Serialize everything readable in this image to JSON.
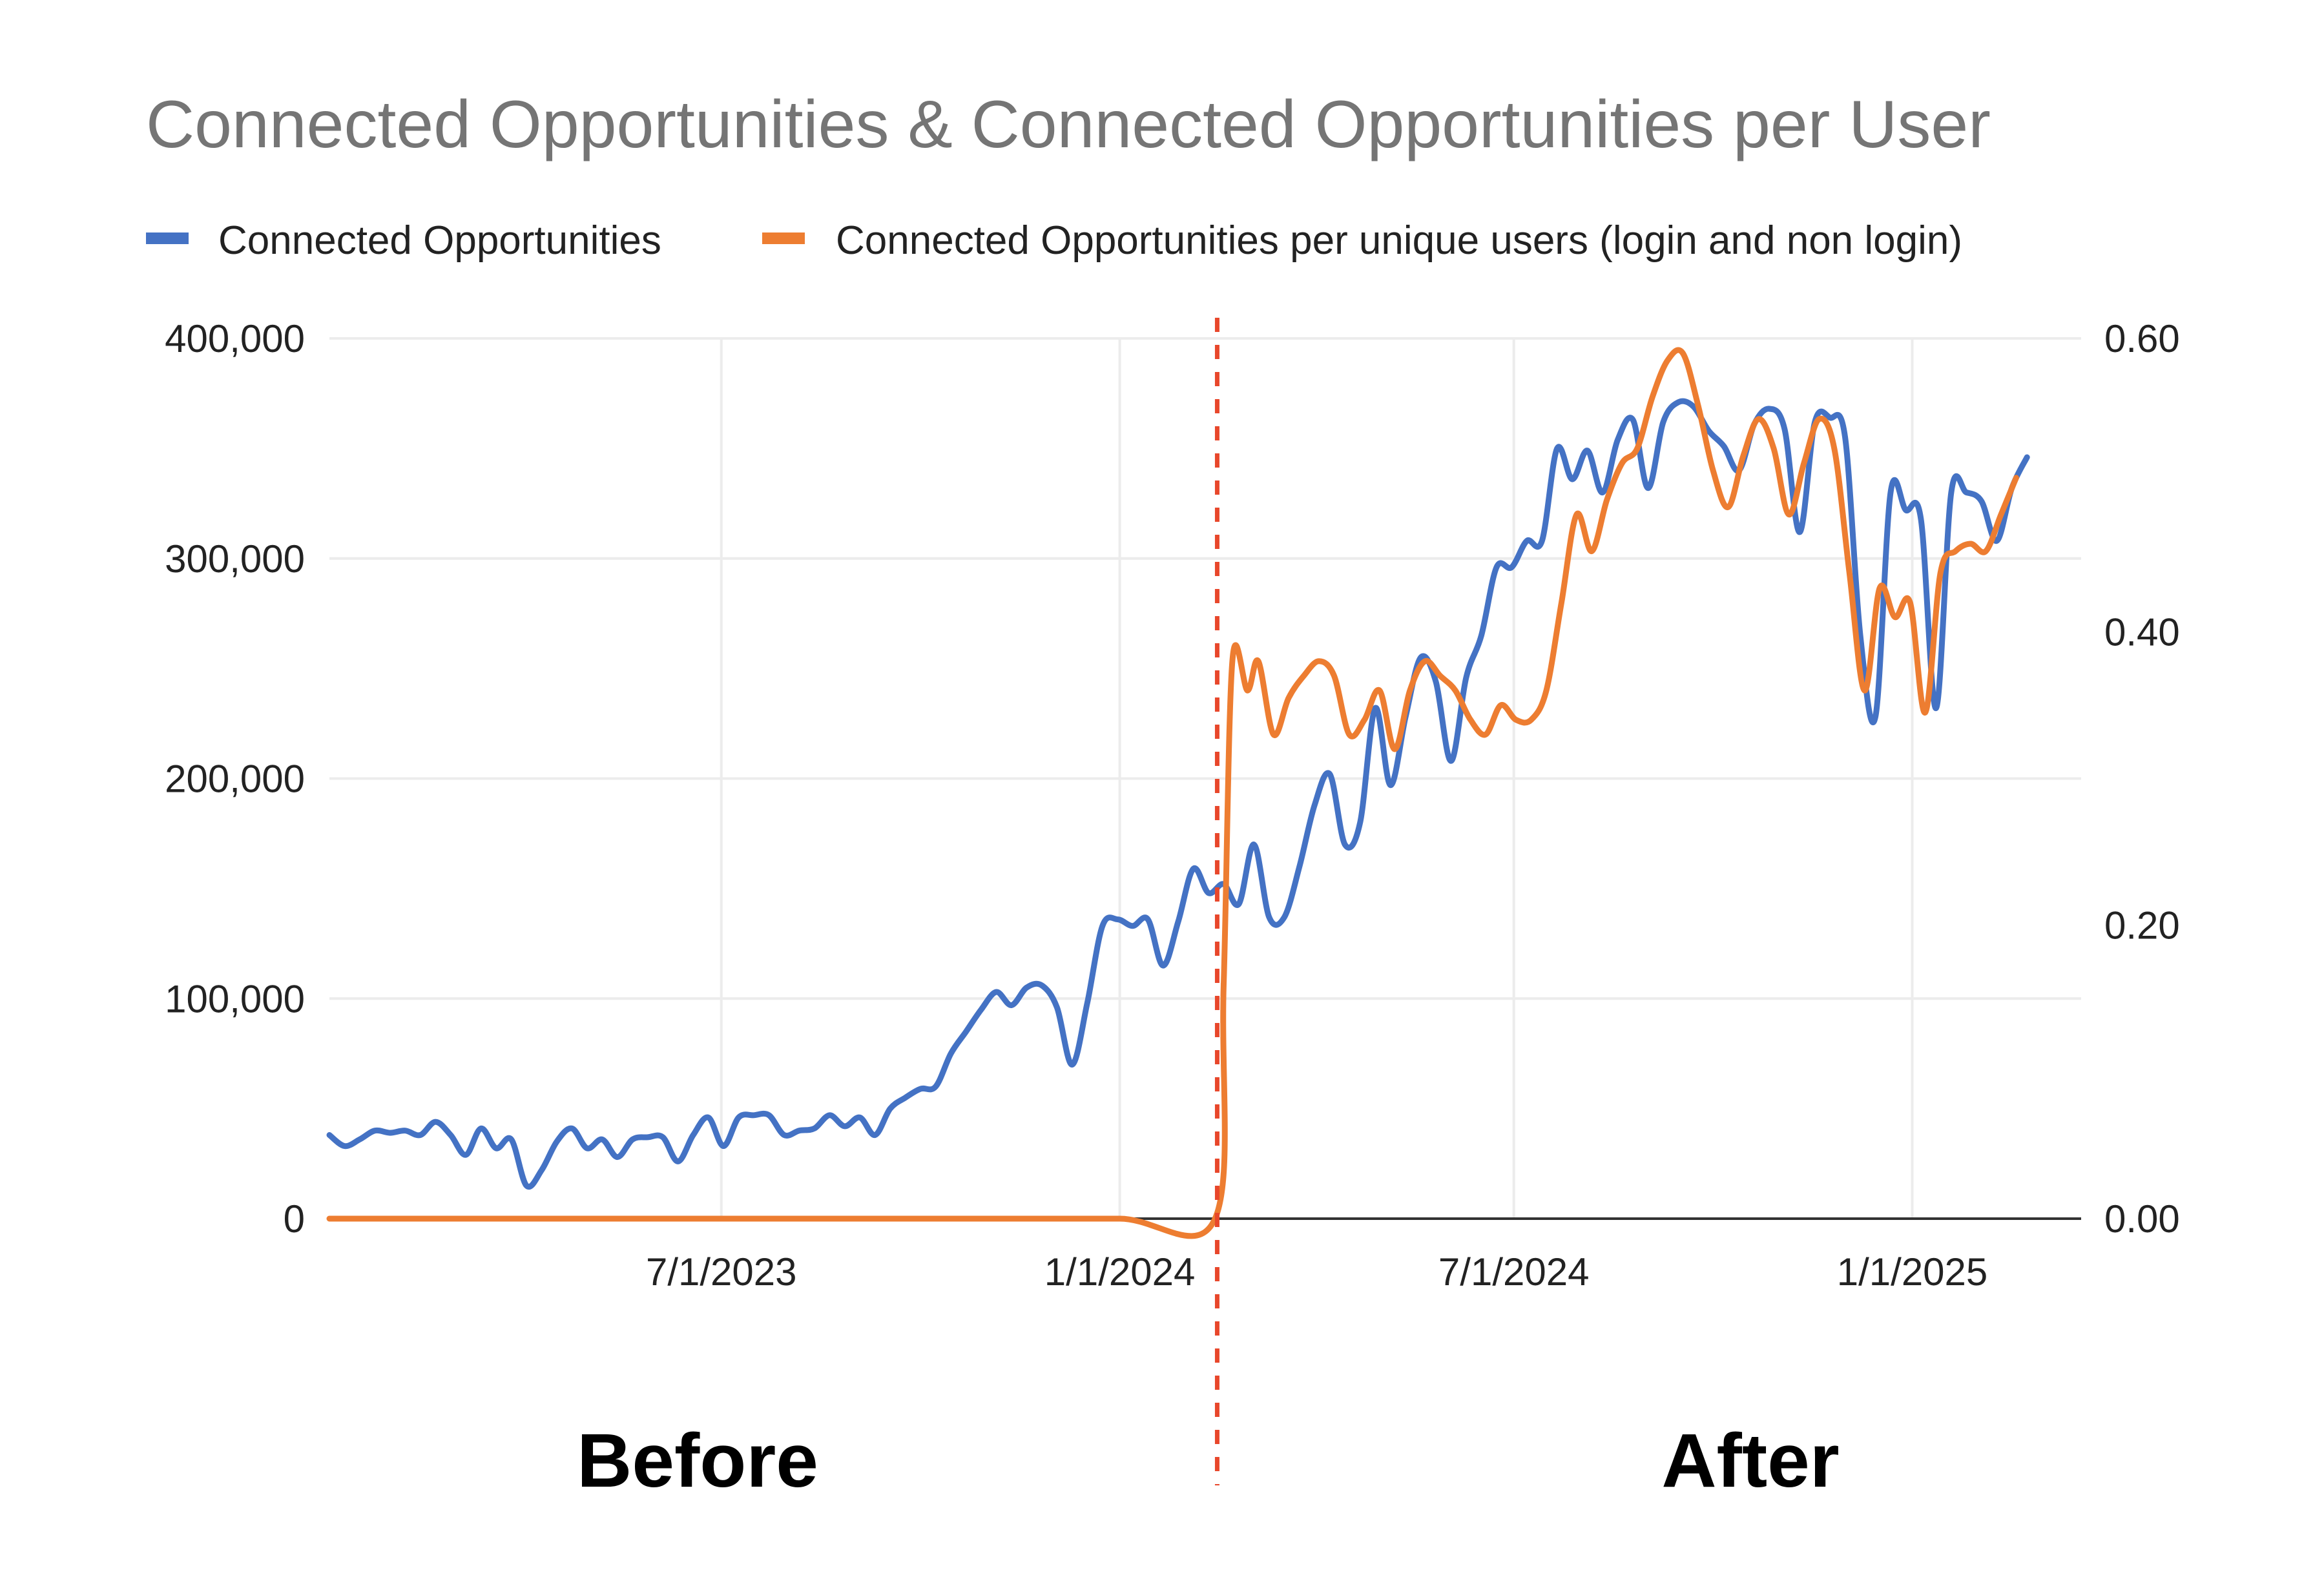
{
  "chart_data": {
    "type": "line",
    "title": "Connected Opportunities & Connected Opportunities per User",
    "legend_position": "top-left",
    "grid": true,
    "x_type": "date",
    "xlim": [
      "2023-01-01",
      "2025-03-20"
    ],
    "x_ticks": [
      {
        "date": "2023-07-01",
        "label": "7/1/2023"
      },
      {
        "date": "2024-01-01",
        "label": "1/1/2024"
      },
      {
        "date": "2024-07-01",
        "label": "7/1/2024"
      },
      {
        "date": "2025-01-01",
        "label": "1/1/2025"
      }
    ],
    "y_left": {
      "lim": [
        0,
        400000
      ],
      "ticks": [
        0,
        100000,
        200000,
        300000,
        400000
      ],
      "tick_labels": [
        "0",
        "100,000",
        "200,000",
        "300,000",
        "400,000"
      ]
    },
    "y_right": {
      "lim": [
        0,
        0.6
      ],
      "ticks": [
        0,
        0.2,
        0.4,
        0.6
      ],
      "tick_labels": [
        "0.00",
        "0.20",
        "0.40",
        "0.60"
      ]
    },
    "colors": {
      "blue": "#4472c4",
      "orange": "#ed7d31",
      "divider": "#e8472b"
    },
    "annotations": {
      "divider_date": "2024-02-15",
      "before_label": "Before",
      "after_label": "After"
    },
    "series": [
      {
        "name": "Connected Opportunities",
        "axis": "left",
        "color": "#4472c4",
        "points": [
          [
            "2023-01-01",
            38000
          ],
          [
            "2023-01-08",
            33000
          ],
          [
            "2023-01-15",
            36000
          ],
          [
            "2023-01-22",
            40000
          ],
          [
            "2023-01-29",
            39000
          ],
          [
            "2023-02-05",
            40000
          ],
          [
            "2023-02-12",
            38000
          ],
          [
            "2023-02-19",
            44000
          ],
          [
            "2023-02-26",
            38000
          ],
          [
            "2023-03-05",
            29000
          ],
          [
            "2023-03-12",
            41000
          ],
          [
            "2023-03-19",
            32000
          ],
          [
            "2023-03-26",
            36000
          ],
          [
            "2023-04-02",
            15000
          ],
          [
            "2023-04-09",
            22000
          ],
          [
            "2023-04-16",
            35000
          ],
          [
            "2023-04-23",
            41000
          ],
          [
            "2023-04-30",
            32000
          ],
          [
            "2023-05-07",
            36000
          ],
          [
            "2023-05-14",
            28000
          ],
          [
            "2023-05-21",
            36000
          ],
          [
            "2023-05-28",
            37000
          ],
          [
            "2023-06-04",
            37000
          ],
          [
            "2023-06-11",
            26000
          ],
          [
            "2023-06-18",
            38000
          ],
          [
            "2023-06-25",
            46000
          ],
          [
            "2023-07-02",
            33000
          ],
          [
            "2023-07-09",
            46000
          ],
          [
            "2023-07-16",
            47000
          ],
          [
            "2023-07-23",
            47000
          ],
          [
            "2023-07-30",
            38000
          ],
          [
            "2023-08-06",
            40000
          ],
          [
            "2023-08-13",
            41000
          ],
          [
            "2023-08-20",
            47000
          ],
          [
            "2023-08-27",
            42000
          ],
          [
            "2023-09-03",
            46000
          ],
          [
            "2023-09-10",
            38000
          ],
          [
            "2023-09-17",
            50000
          ],
          [
            "2023-09-24",
            55000
          ],
          [
            "2023-10-01",
            59000
          ],
          [
            "2023-10-08",
            60000
          ],
          [
            "2023-10-15",
            75000
          ],
          [
            "2023-10-22",
            85000
          ],
          [
            "2023-10-29",
            95000
          ],
          [
            "2023-11-05",
            103000
          ],
          [
            "2023-11-12",
            97000
          ],
          [
            "2023-11-19",
            105000
          ],
          [
            "2023-11-26",
            106000
          ],
          [
            "2023-12-03",
            96000
          ],
          [
            "2023-12-10",
            70000
          ],
          [
            "2023-12-17",
            98000
          ],
          [
            "2023-12-24",
            133000
          ],
          [
            "2023-12-31",
            136000
          ],
          [
            "2024-01-07",
            133000
          ],
          [
            "2024-01-14",
            136000
          ],
          [
            "2024-01-21",
            115000
          ],
          [
            "2024-01-28",
            135000
          ],
          [
            "2024-02-04",
            159000
          ],
          [
            "2024-02-11",
            148000
          ],
          [
            "2024-02-18",
            152000
          ],
          [
            "2024-02-25",
            143000
          ],
          [
            "2024-03-03",
            170000
          ],
          [
            "2024-03-10",
            137000
          ],
          [
            "2024-03-17",
            137000
          ],
          [
            "2024-03-24",
            160000
          ],
          [
            "2024-03-31",
            188000
          ],
          [
            "2024-04-07",
            202000
          ],
          [
            "2024-04-14",
            170000
          ],
          [
            "2024-04-21",
            180000
          ],
          [
            "2024-04-28",
            232000
          ],
          [
            "2024-05-05",
            197000
          ],
          [
            "2024-05-12",
            228000
          ],
          [
            "2024-05-19",
            255000
          ],
          [
            "2024-05-26",
            244000
          ],
          [
            "2024-06-02",
            208000
          ],
          [
            "2024-06-09",
            246000
          ],
          [
            "2024-06-16",
            265000
          ],
          [
            "2024-06-23",
            296000
          ],
          [
            "2024-06-30",
            296000
          ],
          [
            "2024-07-07",
            308000
          ],
          [
            "2024-07-14",
            308000
          ],
          [
            "2024-07-21",
            350000
          ],
          [
            "2024-07-28",
            336000
          ],
          [
            "2024-08-04",
            349000
          ],
          [
            "2024-08-11",
            330000
          ],
          [
            "2024-08-18",
            354000
          ],
          [
            "2024-08-25",
            363000
          ],
          [
            "2024-09-01",
            332000
          ],
          [
            "2024-09-08",
            362000
          ],
          [
            "2024-09-15",
            371000
          ],
          [
            "2024-09-22",
            369000
          ],
          [
            "2024-09-29",
            358000
          ],
          [
            "2024-10-06",
            351000
          ],
          [
            "2024-10-13",
            340000
          ],
          [
            "2024-10-20",
            361000
          ],
          [
            "2024-10-27",
            368000
          ],
          [
            "2024-11-03",
            359000
          ],
          [
            "2024-11-10",
            312000
          ],
          [
            "2024-11-17",
            362000
          ],
          [
            "2024-11-24",
            364000
          ],
          [
            "2024-12-01",
            355000
          ],
          [
            "2024-12-08",
            265000
          ],
          [
            "2024-12-15",
            228000
          ],
          [
            "2024-12-22",
            330000
          ],
          [
            "2024-12-29",
            322000
          ],
          [
            "2025-01-05",
            318000
          ],
          [
            "2025-01-12",
            232000
          ],
          [
            "2025-01-19",
            330000
          ],
          [
            "2025-01-26",
            330000
          ],
          [
            "2025-02-02",
            326000
          ],
          [
            "2025-02-09",
            308000
          ],
          [
            "2025-02-16",
            332000
          ],
          [
            "2025-02-23",
            346000
          ]
        ]
      },
      {
        "name": "Connected Opportunities per unique users (login and non login)",
        "axis": "right",
        "color": "#ed7d31",
        "points": [
          [
            "2023-01-01",
            0.0
          ],
          [
            "2023-03-01",
            0.0
          ],
          [
            "2023-05-01",
            0.0
          ],
          [
            "2023-07-01",
            0.0
          ],
          [
            "2023-09-01",
            0.0
          ],
          [
            "2023-11-01",
            0.0
          ],
          [
            "2024-01-01",
            0.0
          ],
          [
            "2024-02-14",
            0.0
          ],
          [
            "2024-02-18",
            0.16
          ],
          [
            "2024-02-22",
            0.38
          ],
          [
            "2024-02-29",
            0.36
          ],
          [
            "2024-03-05",
            0.38
          ],
          [
            "2024-03-12",
            0.33
          ],
          [
            "2024-03-19",
            0.355
          ],
          [
            "2024-03-26",
            0.37
          ],
          [
            "2024-04-02",
            0.38
          ],
          [
            "2024-04-09",
            0.37
          ],
          [
            "2024-04-16",
            0.33
          ],
          [
            "2024-04-23",
            0.34
          ],
          [
            "2024-04-30",
            0.36
          ],
          [
            "2024-05-07",
            0.32
          ],
          [
            "2024-05-14",
            0.36
          ],
          [
            "2024-05-21",
            0.38
          ],
          [
            "2024-05-28",
            0.37
          ],
          [
            "2024-06-04",
            0.36
          ],
          [
            "2024-06-11",
            0.34
          ],
          [
            "2024-06-18",
            0.33
          ],
          [
            "2024-06-25",
            0.35
          ],
          [
            "2024-07-02",
            0.34
          ],
          [
            "2024-07-09",
            0.34
          ],
          [
            "2024-07-16",
            0.36
          ],
          [
            "2024-07-23",
            0.42
          ],
          [
            "2024-07-30",
            0.48
          ],
          [
            "2024-08-06",
            0.455
          ],
          [
            "2024-08-13",
            0.49
          ],
          [
            "2024-08-20",
            0.515
          ],
          [
            "2024-08-27",
            0.525
          ],
          [
            "2024-09-03",
            0.56
          ],
          [
            "2024-09-10",
            0.585
          ],
          [
            "2024-09-17",
            0.59
          ],
          [
            "2024-09-24",
            0.555
          ],
          [
            "2024-10-01",
            0.51
          ],
          [
            "2024-10-08",
            0.485
          ],
          [
            "2024-10-15",
            0.52
          ],
          [
            "2024-10-22",
            0.545
          ],
          [
            "2024-10-29",
            0.525
          ],
          [
            "2024-11-05",
            0.48
          ],
          [
            "2024-11-12",
            0.515
          ],
          [
            "2024-11-19",
            0.545
          ],
          [
            "2024-11-26",
            0.525
          ],
          [
            "2024-12-03",
            0.44
          ],
          [
            "2024-12-10",
            0.36
          ],
          [
            "2024-12-17",
            0.43
          ],
          [
            "2024-12-24",
            0.41
          ],
          [
            "2024-12-31",
            0.42
          ],
          [
            "2025-01-07",
            0.345
          ],
          [
            "2025-01-14",
            0.44
          ],
          [
            "2025-01-21",
            0.455
          ],
          [
            "2025-01-28",
            0.46
          ],
          [
            "2025-02-04",
            0.455
          ],
          [
            "2025-02-11",
            0.48
          ],
          [
            "2025-02-18",
            0.505
          ]
        ]
      }
    ]
  }
}
